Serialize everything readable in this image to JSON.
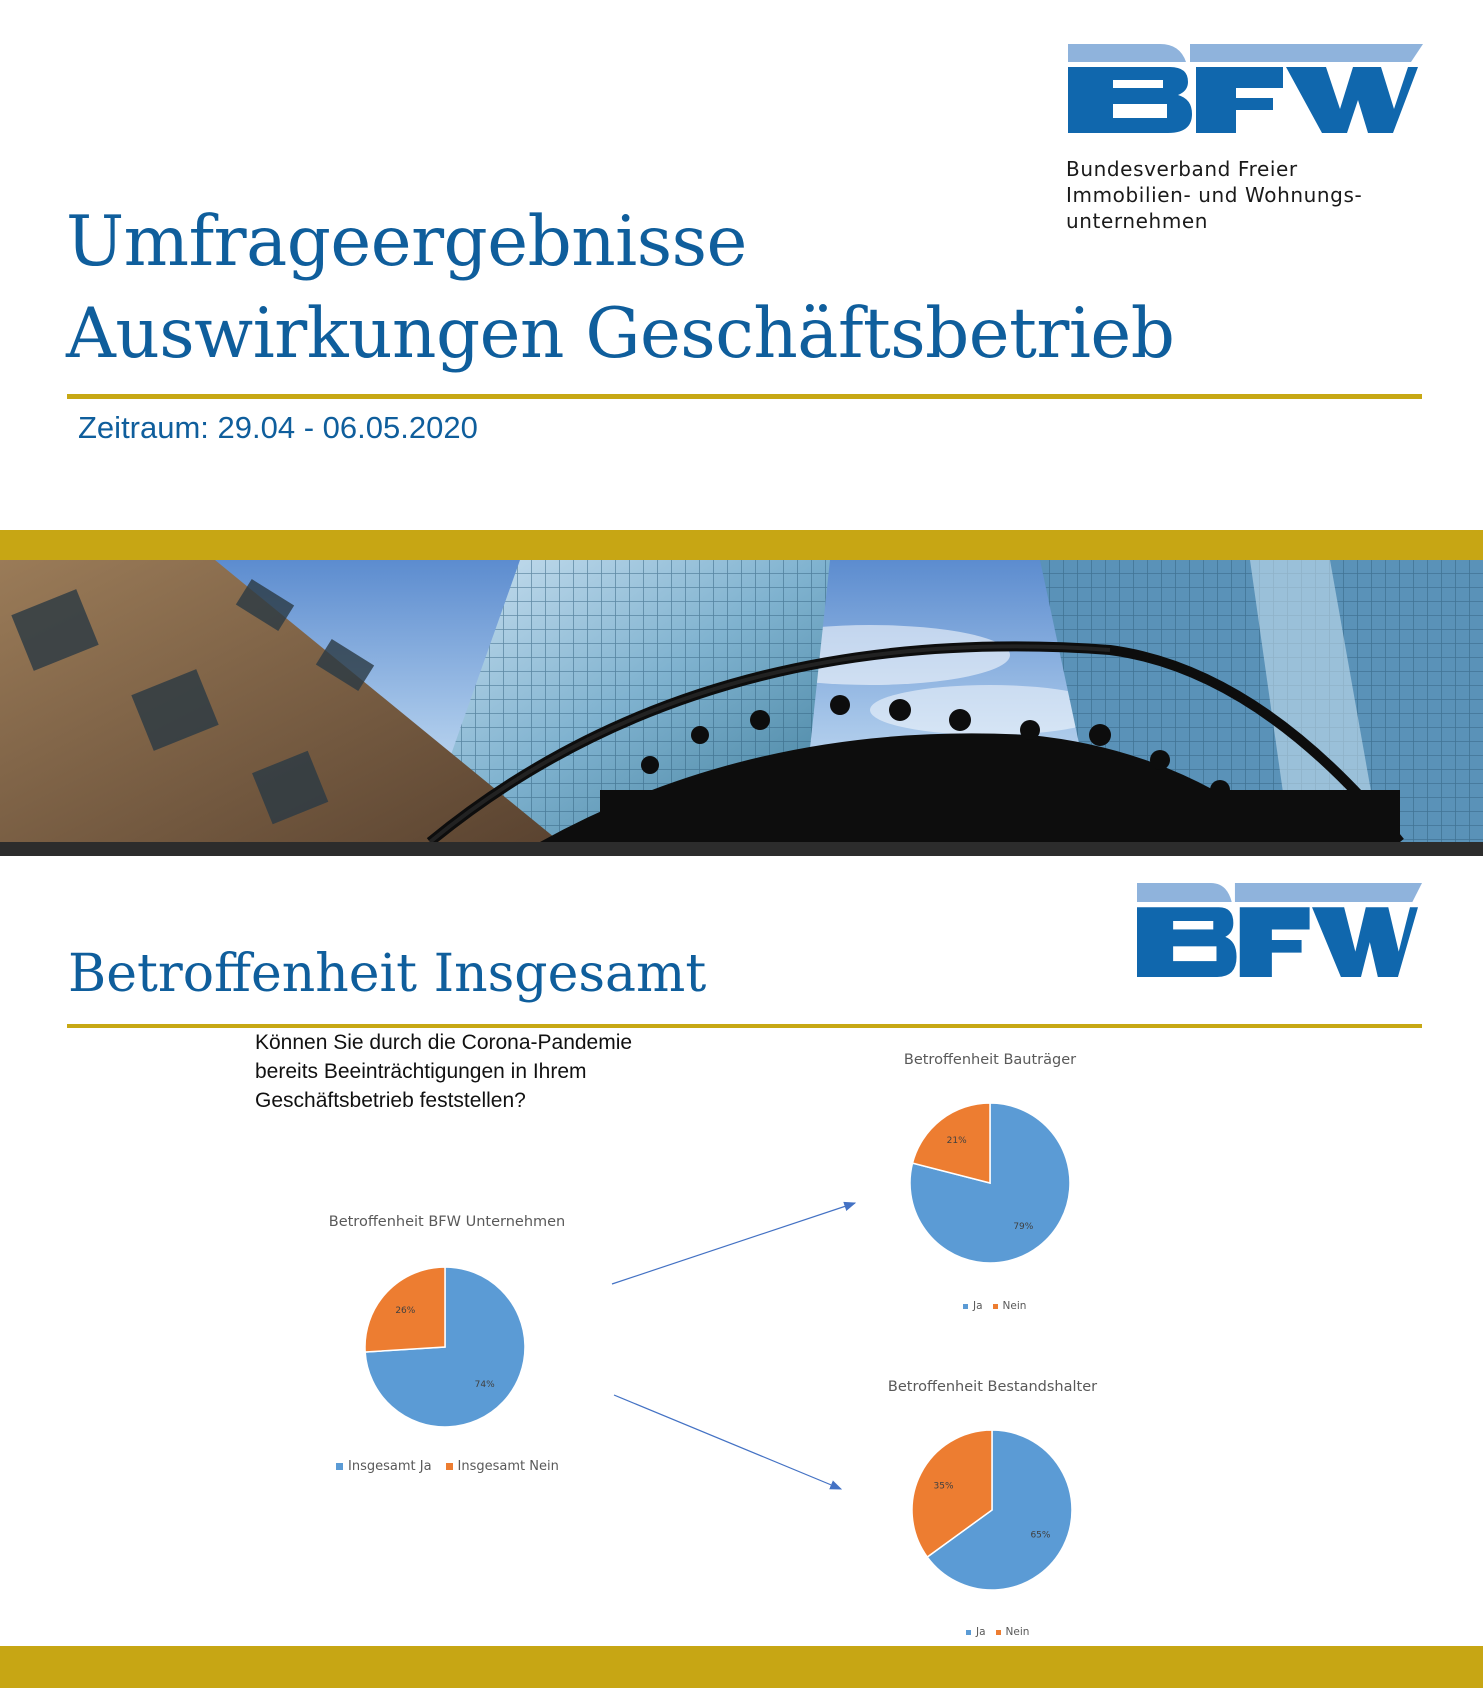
{
  "brand": {
    "logo_text": "BFW",
    "org_name_lines": [
      "Bundesverband Freier",
      "Immobilien- und Wohnungs-",
      "unternehmen"
    ],
    "colors": {
      "blue": "#1067ad",
      "light_blue": "#8fb3dc",
      "title_blue": "#0f5e9c",
      "gold": "#c7a814"
    }
  },
  "cover": {
    "title_lines": [
      "Umfrageergebnisse",
      "Auswirkungen Geschäftsbetrieb"
    ],
    "period": "Zeitraum: 29.04 - 06.05.2020",
    "photo": "frankfurt-skyscrapers-glass-canopy-photo"
  },
  "slide2": {
    "section_title": "Betroffenheit Insgesamt",
    "question_lines": [
      "Können Sie durch die Corona-Pandemie",
      "bereits Beeinträchtigungen in Ihrem",
      "Geschäftsbetrieb feststellen?"
    ],
    "arrows": [
      "arrow-to-bautraeger",
      "arrow-to-bestandshalter"
    ]
  },
  "chart_data": [
    {
      "type": "pie",
      "title": "Betroffenheit BFW Unternehmen",
      "categories": [
        "Insgesamt Ja",
        "Insgesamt Nein"
      ],
      "values": [
        74,
        26
      ],
      "labels": [
        "74%",
        "26%"
      ],
      "colors": [
        "#5b9bd5",
        "#ed7d31"
      ],
      "legend": "bottom"
    },
    {
      "type": "pie",
      "title": "Betroffenheit Bauträger",
      "categories": [
        "Ja",
        "Nein"
      ],
      "values": [
        79,
        21
      ],
      "labels": [
        "79%",
        "21%"
      ],
      "colors": [
        "#5b9bd5",
        "#ed7d31"
      ],
      "legend": "bottom"
    },
    {
      "type": "pie",
      "title": "Betroffenheit Bestandshalter",
      "categories": [
        "Ja",
        "Nein"
      ],
      "values": [
        65,
        35
      ],
      "labels": [
        "65%",
        "35%"
      ],
      "colors": [
        "#5b9bd5",
        "#ed7d31"
      ],
      "legend": "bottom"
    }
  ]
}
